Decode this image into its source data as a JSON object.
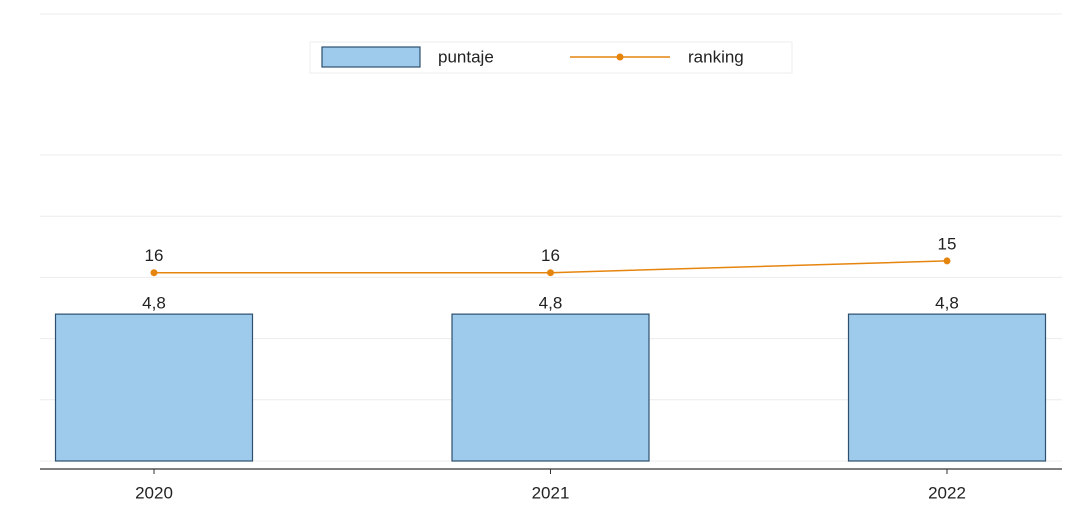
{
  "chart_data": {
    "type": "bar_line",
    "categories": [
      "2020",
      "2021",
      "2022"
    ],
    "series": [
      {
        "name": "puntaje",
        "type": "bar",
        "color": "#9ecbec",
        "values": [
          4.8,
          4.8,
          4.8
        ],
        "value_labels": [
          "4,8",
          "4,8",
          "4,8"
        ]
      },
      {
        "name": "ranking",
        "type": "line",
        "axis": "y2",
        "color": "#e6850e",
        "values": [
          16,
          16,
          15
        ]
      }
    ],
    "ylim": [
      0,
      10
    ],
    "yticks": [
      0,
      2,
      4,
      6,
      8,
      10
    ],
    "y2lim": [
      32,
      6
    ],
    "grid": true,
    "legend": "top"
  }
}
